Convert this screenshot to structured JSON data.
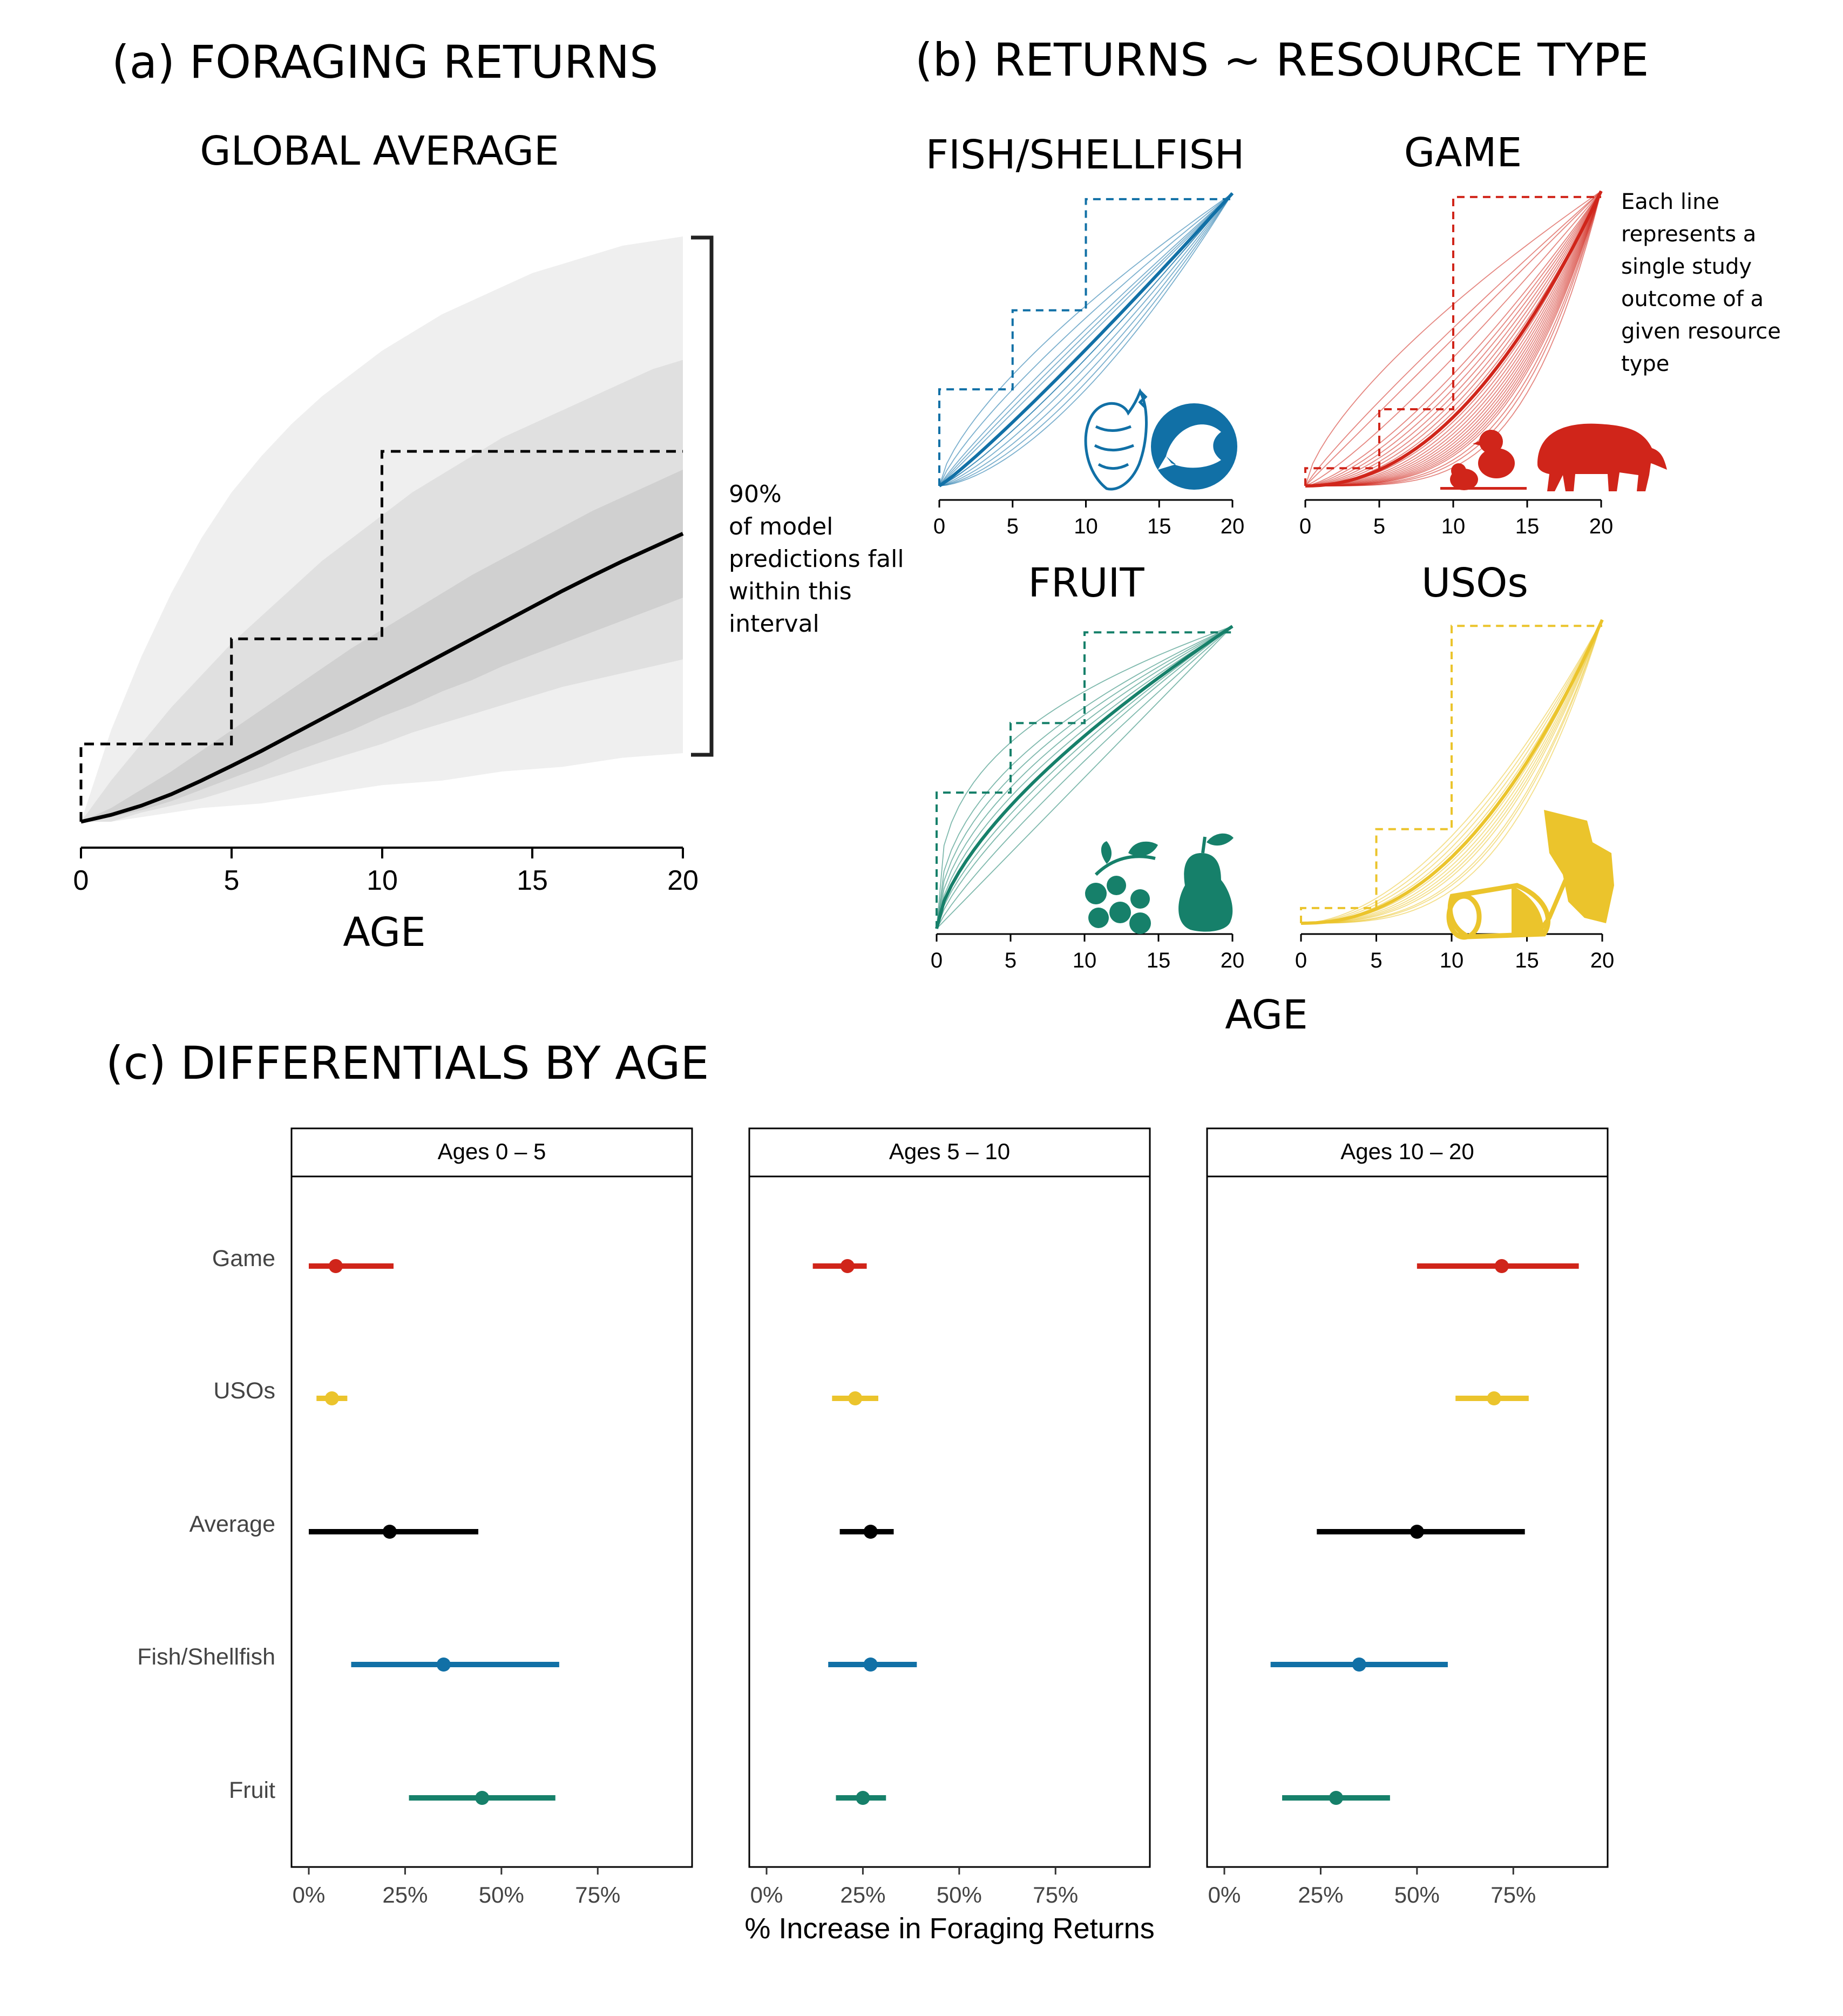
{
  "panel_a": {
    "title": "(a) FORAGING RETURNS",
    "subtitle": "GLOBAL AVERAGE",
    "xlabel": "AGE",
    "xticks": [
      "0",
      "5",
      "10",
      "15",
      "20"
    ],
    "annotation": [
      "90%",
      "of model",
      "predictions fall",
      "within this",
      "interval"
    ]
  },
  "panel_b": {
    "title": "(b) RETURNS ~ RESOURCE TYPE",
    "xlabel": "AGE",
    "xticks": [
      "0",
      "5",
      "10",
      "15",
      "20"
    ],
    "note": [
      "Each line",
      "represents a",
      "single study",
      "outcome of a",
      "given resource",
      "type"
    ],
    "subplots": [
      {
        "title": "FISH/SHELLFISH",
        "color": "#1170A6",
        "icons": [
          "shell-icon",
          "fish-icon"
        ]
      },
      {
        "title": "GAME",
        "color": "#D0251A",
        "icons": [
          "birds-icon",
          "tapir-icon"
        ]
      },
      {
        "title": "FRUIT",
        "color": "#16806A",
        "icons": [
          "berries-icon",
          "pear-icon"
        ]
      },
      {
        "title": "USOs",
        "color": "#EBC42C",
        "icons": [
          "tuber-icon",
          "root-icon"
        ]
      }
    ]
  },
  "panel_c": {
    "title": "(c) DIFFERENTIALS BY AGE",
    "xlabel": "% Increase in Foraging Returns",
    "xticks": [
      "0%",
      "25%",
      "50%",
      "75%"
    ]
  },
  "chart_data": [
    {
      "type": "line",
      "id": "global-average",
      "x": [
        0,
        1,
        2,
        3,
        4,
        5,
        6,
        7,
        8,
        9,
        10,
        11,
        12,
        13,
        14,
        15,
        16,
        17,
        18,
        19,
        20
      ],
      "series": [
        {
          "values": [
            0.0,
            0.015,
            0.035,
            0.06,
            0.09,
            0.122,
            0.155,
            0.19,
            0.225,
            0.26,
            0.295,
            0.33,
            0.365,
            0.4,
            0.435,
            0.47,
            0.505,
            0.538,
            0.57,
            0.6,
            0.63
          ]
        }
      ],
      "bands": [
        {
          "level": "90%",
          "lower": [
            0.0,
            0.0,
            0.01,
            0.02,
            0.03,
            0.035,
            0.04,
            0.05,
            0.06,
            0.07,
            0.08,
            0.085,
            0.09,
            0.1,
            0.11,
            0.115,
            0.12,
            0.13,
            0.14,
            0.145,
            0.15
          ],
          "upper": [
            0.0,
            0.2,
            0.36,
            0.5,
            0.62,
            0.72,
            0.8,
            0.87,
            0.93,
            0.98,
            1.03,
            1.07,
            1.11,
            1.14,
            1.17,
            1.2,
            1.22,
            1.24,
            1.26,
            1.27,
            1.28
          ]
        },
        {
          "level": "inner",
          "lower": [
            0.0,
            0.0,
            0.02,
            0.035,
            0.05,
            0.07,
            0.09,
            0.11,
            0.13,
            0.15,
            0.17,
            0.195,
            0.215,
            0.235,
            0.255,
            0.275,
            0.295,
            0.31,
            0.325,
            0.34,
            0.355
          ],
          "upper": [
            0.0,
            0.09,
            0.17,
            0.25,
            0.32,
            0.39,
            0.45,
            0.51,
            0.57,
            0.62,
            0.67,
            0.72,
            0.76,
            0.8,
            0.84,
            0.87,
            0.9,
            0.93,
            0.96,
            0.99,
            1.01
          ]
        },
        {
          "level": "core",
          "lower": [
            0.0,
            0.01,
            0.025,
            0.045,
            0.07,
            0.095,
            0.12,
            0.15,
            0.175,
            0.2,
            0.23,
            0.255,
            0.285,
            0.31,
            0.34,
            0.365,
            0.39,
            0.415,
            0.44,
            0.465,
            0.49
          ],
          "upper": [
            0.0,
            0.03,
            0.07,
            0.11,
            0.155,
            0.2,
            0.245,
            0.29,
            0.335,
            0.38,
            0.42,
            0.46,
            0.5,
            0.54,
            0.575,
            0.61,
            0.645,
            0.68,
            0.71,
            0.74,
            0.77
          ]
        }
      ],
      "step": [
        {
          "x": 0,
          "y": 0.17
        },
        {
          "x": 5,
          "y": 0.4
        },
        {
          "x": 10,
          "y": 0.81
        },
        {
          "x": 20,
          "y": 0.81
        }
      ],
      "xlim": [
        0,
        20
      ],
      "ylim": [
        0,
        1.28
      ]
    },
    {
      "type": "line",
      "id": "fish-shellfish",
      "x_range": [
        0,
        20
      ],
      "mean_shape": 1.1,
      "study_shapes": [
        0.7,
        0.8,
        0.9,
        1.0,
        1.1,
        1.2,
        1.3,
        1.4,
        1.5,
        1.6,
        1.2,
        0.95
      ],
      "step": [
        0.33,
        0.6,
        0.98,
        1.0
      ]
    },
    {
      "type": "line",
      "id": "game",
      "x_range": [
        0,
        20
      ],
      "mean_shape": 2.1,
      "study_shapes": [
        0.7,
        0.9,
        1.0,
        1.2,
        1.4,
        1.5,
        1.6,
        1.7,
        1.8,
        1.9,
        2.0,
        2.1,
        2.2,
        2.3,
        2.4,
        2.5,
        2.6,
        2.7,
        2.8,
        2.9,
        3.0,
        3.1,
        3.2,
        3.3,
        3.5,
        3.7,
        4.0
      ],
      "step": [
        0.06,
        0.26,
        0.98,
        1.0
      ]
    },
    {
      "type": "line",
      "id": "fruit",
      "x_range": [
        0,
        20
      ],
      "mean_shape": 0.65,
      "study_shapes": [
        0.35,
        0.45,
        0.5,
        0.55,
        0.6,
        0.7,
        0.75,
        0.85,
        1.0
      ],
      "step": [
        0.45,
        0.68,
        0.98,
        1.0
      ]
    },
    {
      "type": "line",
      "id": "usos",
      "x_range": [
        0,
        20
      ],
      "mean_shape": 2.2,
      "study_shapes": [
        1.8,
        1.9,
        2.0,
        2.1,
        2.3,
        2.4,
        2.5,
        2.6,
        2.7,
        2.9,
        3.0,
        3.2
      ],
      "step": [
        0.05,
        0.31,
        0.98,
        1.0
      ]
    },
    {
      "type": "scatter",
      "id": "differentials",
      "categories": [
        "Game",
        "USOs",
        "Average",
        "Fish/Shellfish",
        "Fruit"
      ],
      "colors": [
        "#D0251A",
        "#EBC42C",
        "#000000",
        "#1170A6",
        "#16806A"
      ],
      "xlim": [
        0,
        95
      ],
      "facets": [
        {
          "label": "Ages 0 – 5",
          "points": [
            [
              7,
              0,
              22
            ],
            [
              6,
              2,
              10
            ],
            [
              21,
              0,
              44
            ],
            [
              35,
              11,
              65
            ],
            [
              45,
              26,
              64
            ]
          ]
        },
        {
          "label": "Ages 5 – 10",
          "points": [
            [
              21,
              12,
              26
            ],
            [
              23,
              17,
              29
            ],
            [
              27,
              19,
              33
            ],
            [
              27,
              16,
              39
            ],
            [
              25,
              18,
              31
            ]
          ]
        },
        {
          "label": "Ages 10 – 20",
          "points": [
            [
              72,
              50,
              92
            ],
            [
              70,
              60,
              79
            ],
            [
              50,
              24,
              78
            ],
            [
              35,
              12,
              58
            ],
            [
              29,
              15,
              43
            ]
          ]
        }
      ]
    }
  ]
}
